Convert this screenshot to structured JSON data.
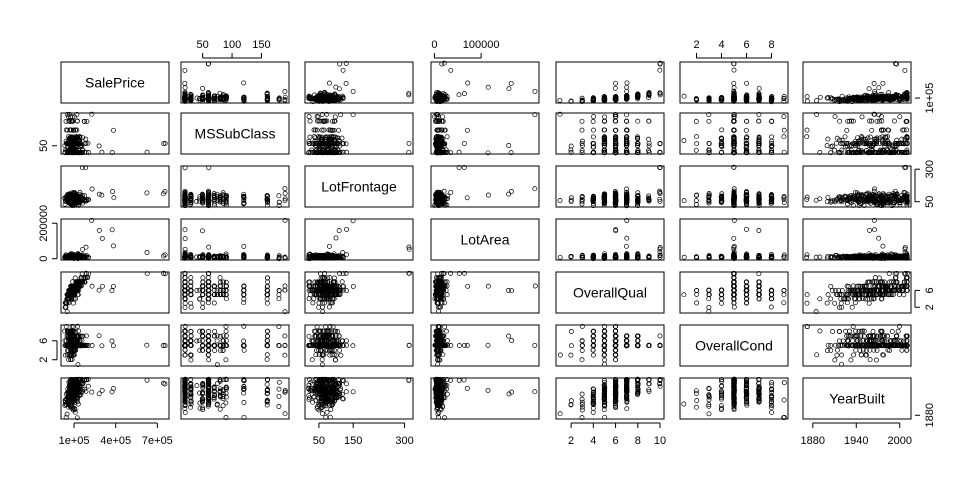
{
  "chart_data": {
    "type": "scatter",
    "subtype": "scatterplot-matrix",
    "variables": [
      "SalePrice",
      "MSSubClass",
      "LotFrontage",
      "LotArea",
      "OverallQual",
      "OverallCond",
      "YearBuilt"
    ],
    "ranges": {
      "SalePrice": [
        34900,
        755000
      ],
      "MSSubClass": [
        20,
        190
      ],
      "LotFrontage": [
        21,
        313
      ],
      "LotArea": [
        1300,
        215245
      ],
      "OverallQual": [
        1,
        10
      ],
      "OverallCond": [
        1,
        9
      ],
      "YearBuilt": [
        1872,
        2010
      ]
    },
    "ticks": {
      "SalePrice": {
        "values": [
          100000,
          400000,
          700000
        ],
        "labels": [
          "1e+05",
          "4e+05",
          "7e+05"
        ]
      },
      "MSSubClass": {
        "values": [
          50,
          100,
          150
        ],
        "labels": [
          "50",
          "100",
          "150"
        ]
      },
      "LotFrontage": {
        "values": [
          50,
          150,
          300
        ],
        "labels": [
          "50",
          "150",
          "300"
        ]
      },
      "LotArea": {
        "values": [
          0,
          100000,
          200000
        ],
        "labels": [
          "0",
          "100000",
          "200000"
        ]
      },
      "OverallQual": {
        "values": [
          2,
          4,
          6,
          8,
          10
        ],
        "labels": [
          "2",
          "4",
          "6",
          "8",
          "10"
        ]
      },
      "OverallCond": {
        "values": [
          2,
          4,
          6,
          8
        ],
        "labels": [
          "2",
          "4",
          "6",
          "8"
        ]
      },
      "YearBuilt": {
        "values": [
          1880,
          1940,
          2000
        ],
        "labels": [
          "1880",
          "1940",
          "2000"
        ]
      }
    },
    "axis_layout": {
      "top": {
        "MSSubClass": [
          50,
          100,
          150
        ],
        "LotArea": [
          0,
          100000
        ],
        "OverallCond": [
          2,
          4,
          6,
          8
        ]
      },
      "bottom": {
        "SalePrice": [
          100000,
          400000,
          700000
        ],
        "LotFrontage": [
          50,
          150,
          300
        ],
        "OverallQual": [
          2,
          4,
          6,
          8,
          10
        ],
        "YearBuilt": [
          1880,
          1940,
          2000
        ]
      },
      "left": {
        "MSSubClass": [
          50
        ],
        "LotArea": [
          0,
          200000
        ],
        "OverallCond": [
          2,
          6
        ]
      },
      "right": {
        "SalePrice": [
          100000
        ],
        "LotFrontage": [
          50,
          300
        ],
        "OverallQual": [
          2,
          6
        ],
        "YearBuilt": [
          1880
        ]
      }
    },
    "grid": false,
    "legend": "none",
    "point_style": "open-circle",
    "point_color": "#000000"
  }
}
